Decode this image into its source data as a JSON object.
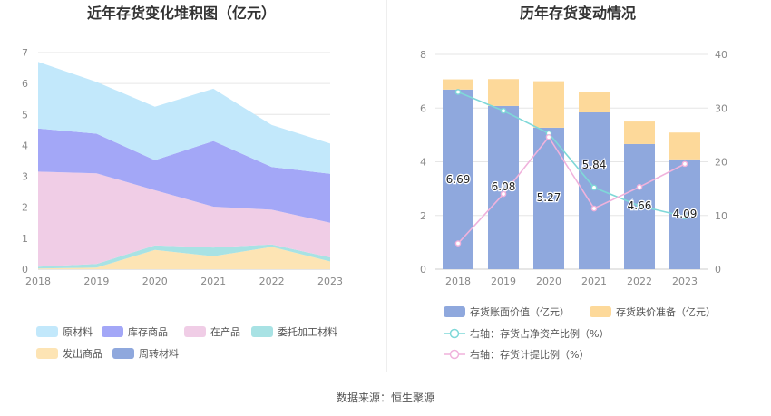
{
  "footer": "数据来源：恒生聚源",
  "colors": {
    "raw_material": "#c2e8fb",
    "inventory_goods": "#a3a7f7",
    "wip": "#f0cde6",
    "outsourced": "#a8e2e4",
    "shipped": "#fde4b4",
    "turnover": "#8fa8dd",
    "book_value": "#8fa8dd",
    "impairment": "#fdd99a",
    "net_asset_ratio": "#7fd8d8",
    "provision_ratio": "#f0b2dc"
  },
  "chart_data": [
    {
      "type": "area",
      "stacked": true,
      "title": "近年存货变化堆积图（亿元）",
      "categories": [
        "2018",
        "2019",
        "2020",
        "2021",
        "2022",
        "2023"
      ],
      "ylim": [
        0,
        7
      ],
      "yticks": [
        "0",
        "1",
        "2",
        "3",
        "4",
        "5",
        "6",
        "7"
      ],
      "grid": true,
      "legend_position": "bottom",
      "series": [
        {
          "name": "发出商品",
          "color_key": "shipped",
          "values": [
            0.02,
            0.05,
            0.62,
            0.42,
            0.72,
            0.25
          ]
        },
        {
          "name": "委托加工材料",
          "color_key": "outsourced",
          "values": [
            0.06,
            0.12,
            0.15,
            0.28,
            0.08,
            0.13
          ]
        },
        {
          "name": "在产品",
          "color_key": "wip",
          "values": [
            3.07,
            2.93,
            1.78,
            1.32,
            1.12,
            1.12
          ]
        },
        {
          "name": "库存商品",
          "color_key": "inventory_goods",
          "values": [
            1.4,
            1.28,
            0.97,
            2.12,
            1.38,
            1.58
          ]
        },
        {
          "name": "原材料",
          "color_key": "raw_material",
          "values": [
            2.15,
            1.67,
            1.73,
            1.69,
            1.36,
            0.98
          ]
        },
        {
          "name": "周转材料",
          "color_key": "turnover",
          "values": [
            0,
            0,
            0,
            0,
            0,
            0
          ]
        }
      ],
      "legend": [
        "原材料",
        "库存商品",
        "在产品",
        "委托加工材料",
        "发出商品",
        "周转材料"
      ]
    },
    {
      "type": "bar",
      "stacked": true,
      "title": "历年存货变动情况",
      "categories": [
        "2018",
        "2019",
        "2020",
        "2021",
        "2022",
        "2023"
      ],
      "ylim": [
        0,
        8
      ],
      "yticks": [
        "0",
        "2",
        "4",
        "6",
        "8"
      ],
      "y2lim": [
        0,
        40
      ],
      "y2ticks": [
        "0",
        "10",
        "20",
        "30",
        "40"
      ],
      "grid": true,
      "legend_position": "bottom",
      "series": [
        {
          "name": "存货账面价值（亿元）",
          "color_key": "book_value",
          "values": [
            6.69,
            6.08,
            5.27,
            5.84,
            4.66,
            4.09
          ],
          "labels": [
            "6.69",
            "6.08",
            "5.27",
            "5.84",
            "4.66",
            "4.09"
          ]
        },
        {
          "name": "存货跌价准备（亿元）",
          "color_key": "impairment",
          "values": [
            0.38,
            1.0,
            1.73,
            0.75,
            0.84,
            1.0
          ]
        },
        {
          "name": "右轴：存货占净资产比例（%）",
          "color_key": "net_asset_ratio",
          "axis": "right",
          "values": [
            33.0,
            29.5,
            25.3,
            15.2,
            11.8,
            9.8
          ]
        },
        {
          "name": "右轴：存货计提比例（%）",
          "color_key": "provision_ratio",
          "axis": "right",
          "values": [
            4.8,
            14.0,
            24.6,
            11.3,
            15.3,
            19.6
          ]
        }
      ]
    }
  ]
}
